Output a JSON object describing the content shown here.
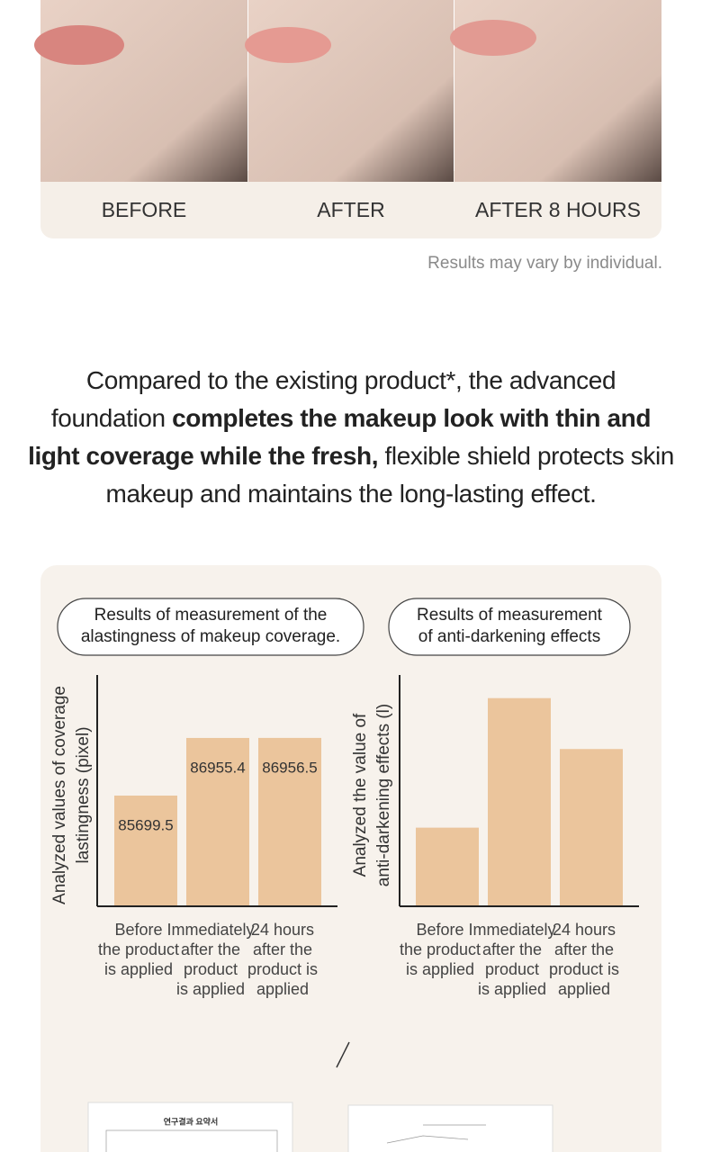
{
  "photo_labels": [
    "BEFORE",
    "AFTER",
    "AFTER 8 HOURS"
  ],
  "disclaimer": "Results may vary by individual.",
  "description": {
    "lead": "Compared to the existing product*, the advanced foundation ",
    "bold": "completes the makeup look with thin and light coverage while the fresh,",
    "tail": " flexible shield protects skin makeup and maintains the long-lasting effect."
  },
  "charts": [
    {
      "type": "bar",
      "title": [
        "Results of measurement of the",
        "alastingness of makeup coverage."
      ],
      "y_label": [
        "Analyzed values of coverage",
        "lastingness (pixel)"
      ],
      "categories": [
        [
          "Before",
          "the product",
          "is applied"
        ],
        [
          "Immediately",
          "after the",
          "product",
          "is applied"
        ],
        [
          "24 hours",
          "after the",
          "product is",
          "applied"
        ]
      ],
      "values": [
        85699.5,
        86955.4,
        86956.5
      ],
      "show_value_labels": true,
      "color": "#ebc59c",
      "ylim": [
        83288,
        88327
      ]
    },
    {
      "type": "bar",
      "title": [
        "Results of measurement",
        "of anti-darkening effects"
      ],
      "y_label": [
        "Analyzed the value of",
        "anti-darkening effects (l)"
      ],
      "categories": [
        [
          "Before",
          "the product",
          "is applied"
        ],
        [
          "Immediately",
          "after the",
          "product",
          "is applied"
        ],
        [
          "24 hours",
          "after the",
          "product is",
          "applied"
        ]
      ],
      "values": [
        34,
        90,
        68
      ],
      "show_value_labels": false,
      "color": "#ebc59c",
      "ylim": [
        0,
        100
      ]
    }
  ],
  "documents": [
    "연구결과 요약서"
  ]
}
